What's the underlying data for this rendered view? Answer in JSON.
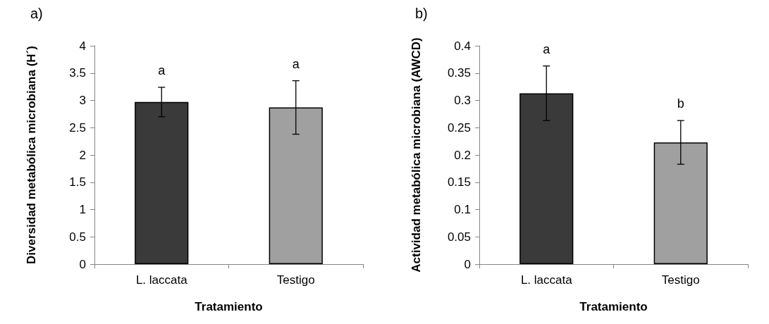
{
  "chart_data": [
    {
      "type": "bar",
      "title": "a)",
      "xlabel": "Tratamiento",
      "ylabel": "Diversidad metabólica microbiana (H´)",
      "categories": [
        "L. laccata",
        "Testigo"
      ],
      "values": [
        2.97,
        2.87
      ],
      "errors": [
        0.27,
        0.49
      ],
      "colors": [
        "#3a3a3a",
        "#a0a0a0"
      ],
      "ylim": [
        0,
        4
      ],
      "yticks": [
        0,
        0.5,
        1,
        1.5,
        2,
        2.5,
        3,
        3.5,
        4
      ],
      "grid": false,
      "annotations": [
        "a",
        "a"
      ]
    },
    {
      "type": "bar",
      "title": "b)",
      "xlabel": "Tratamiento",
      "ylabel": "Actividad metabólica microbiana (AWCD)",
      "categories": [
        "L. laccata",
        "Testigo"
      ],
      "values": [
        0.313,
        0.223
      ],
      "errors": [
        0.05,
        0.04
      ],
      "colors": [
        "#3a3a3a",
        "#a0a0a0"
      ],
      "ylim": [
        0,
        0.4
      ],
      "yticks": [
        0,
        0.05,
        0.1,
        0.15,
        0.2,
        0.25,
        0.3,
        0.35,
        0.4
      ],
      "grid": false,
      "annotations": [
        "a",
        "b"
      ]
    }
  ]
}
